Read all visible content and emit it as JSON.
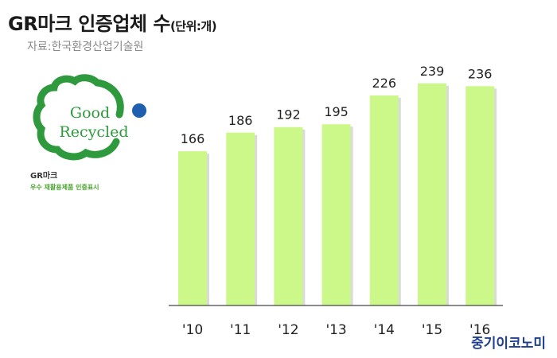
{
  "header": {
    "title": "GR마크 인증업체 수",
    "unit": "(단위:개)",
    "source": "자료:한국환경산업기술원"
  },
  "logo": {
    "line1": "Good",
    "line2": "Recycled",
    "name": "GR마크",
    "desc": "우수 재활용제품 인증표시",
    "green": "#2e9a3d",
    "dot": "#1f5fae"
  },
  "brand": "중기이코노미",
  "colors": {
    "bar": "#ccf88a",
    "bar_shadow": "#bcbcbc",
    "axis": "#444444"
  },
  "chart_data": {
    "type": "bar",
    "categories": [
      "'10",
      "'11",
      "'12",
      "'13",
      "'14",
      "'15",
      "'16"
    ],
    "values": [
      166,
      186,
      192,
      195,
      226,
      239,
      236
    ],
    "title": "GR마크 인증업체 수",
    "ylim": [
      0,
      250
    ],
    "grid": false,
    "legend": "none"
  }
}
